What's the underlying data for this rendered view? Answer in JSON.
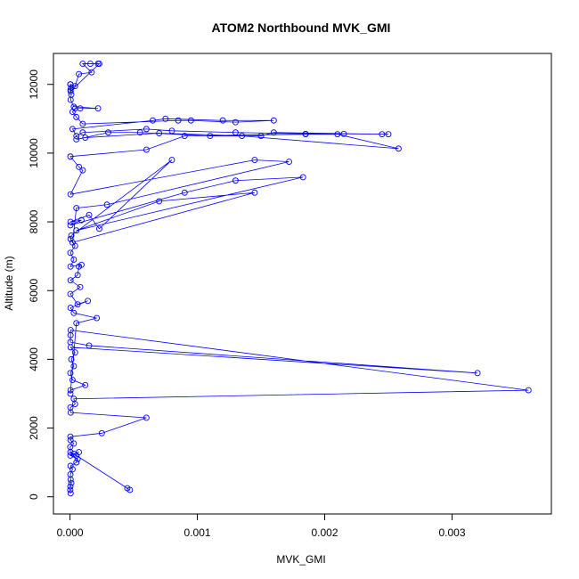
{
  "chart_data": {
    "type": "line",
    "title": "ATOM2 Northbound MVK_GMI",
    "xlabel": "MVK_GMI",
    "ylabel": "Altitude (m)",
    "xlim": [
      -0.00013,
      0.00378
    ],
    "ylim": [
      -500,
      12900
    ],
    "x_ticks": [
      0.0,
      0.001,
      0.002,
      0.003
    ],
    "x_tick_labels": [
      "0.000",
      "0.001",
      "0.002",
      "0.003"
    ],
    "y_ticks": [
      0,
      2000,
      4000,
      6000,
      8000,
      10000,
      12000
    ],
    "y_tick_labels": [
      "0",
      "2000",
      "4000",
      "6000",
      "8000",
      "10000",
      "12000"
    ],
    "grid": false,
    "legend": "none",
    "marker": "open-circle",
    "series": [
      {
        "color": "#0000ff",
        "points": [
          [
            5e-06,
            100
          ],
          [
            2e-06,
            200
          ],
          [
            3e-06,
            300
          ],
          [
            1e-05,
            400
          ],
          [
            5e-06,
            500
          ],
          [
            3e-06,
            650
          ],
          [
            2e-05,
            800
          ],
          [
            4e-06,
            900
          ],
          [
            5e-05,
            1000
          ],
          [
            6e-05,
            1100
          ],
          [
            3e-06,
            1200
          ],
          [
            7e-05,
            1300
          ],
          [
            3e-05,
            1250
          ],
          [
            0.00045,
            250
          ],
          [
            0.00047,
            200
          ],
          [
            5e-05,
            1200
          ],
          [
            3e-06,
            1300
          ],
          [
            2e-06,
            1450
          ],
          [
            3e-05,
            1550
          ],
          [
            4e-06,
            1650
          ],
          [
            3e-06,
            1750
          ],
          [
            0.00025,
            1850
          ],
          [
            0.0006,
            2300
          ],
          [
            5e-06,
            2450
          ],
          [
            3e-06,
            2600
          ],
          [
            4e-05,
            2700
          ],
          [
            3e-05,
            2850
          ],
          [
            0.0036,
            3100
          ],
          [
            5e-06,
            4850
          ],
          [
            4e-06,
            4700
          ],
          [
            3e-06,
            4500
          ],
          [
            0.00015,
            4400
          ],
          [
            0.0032,
            3600
          ],
          [
            5e-06,
            4350
          ],
          [
            4e-05,
            4200
          ],
          [
            1e-05,
            4000
          ],
          [
            3e-05,
            3800
          ],
          [
            3e-06,
            3600
          ],
          [
            2e-05,
            3400
          ],
          [
            0.00012,
            3250
          ],
          [
            4e-06,
            3100
          ],
          [
            3e-06,
            3000
          ],
          [
            5e-05,
            5050
          ],
          [
            0.00021,
            5200
          ],
          [
            3e-05,
            5350
          ],
          [
            4e-06,
            5500
          ],
          [
            0.00014,
            5700
          ],
          [
            6e-05,
            5600
          ],
          [
            3e-06,
            5900
          ],
          [
            8e-05,
            6100
          ],
          [
            4e-06,
            6300
          ],
          [
            6e-05,
            6450
          ],
          [
            7e-05,
            6700
          ],
          [
            9e-05,
            6750
          ],
          [
            4e-06,
            6700
          ],
          [
            3e-05,
            6900
          ],
          [
            3e-06,
            7100
          ],
          [
            4e-05,
            7300
          ],
          [
            4e-06,
            7500
          ],
          [
            1e-05,
            7600
          ],
          [
            0.0008,
            9800
          ],
          [
            0.00023,
            7800
          ],
          [
            0.00015,
            8200
          ],
          [
            4e-06,
            8000
          ],
          [
            9e-05,
            8050
          ],
          [
            3e-06,
            7900
          ],
          [
            0.0009,
            8850
          ],
          [
            0.0013,
            9200
          ],
          [
            0.00183,
            9300
          ],
          [
            5e-05,
            7750
          ],
          [
            0.0007,
            8600
          ],
          [
            0.00145,
            8850
          ],
          [
            2e-05,
            7400
          ],
          [
            5e-05,
            8400
          ],
          [
            0.00029,
            8500
          ],
          [
            0.00172,
            9750
          ],
          [
            0.00145,
            9800
          ],
          [
            4e-06,
            8800
          ],
          [
            0.0001,
            9500
          ],
          [
            7e-05,
            9600
          ],
          [
            3e-06,
            9900
          ],
          [
            0.0006,
            10100
          ],
          [
            0.0009,
            10500
          ],
          [
            0.00185,
            10550
          ],
          [
            0.0021,
            10550
          ],
          [
            0.00258,
            10130
          ],
          [
            0.00135,
            10500
          ],
          [
            0.0007,
            10580
          ],
          [
            0.00012,
            10450
          ],
          [
            5e-05,
            10400
          ],
          [
            0.0003,
            10600
          ],
          [
            0.00055,
            10600
          ],
          [
            0.0011,
            10500
          ],
          [
            0.0015,
            10500
          ],
          [
            0.0016,
            10600
          ],
          [
            0.00245,
            10550
          ],
          [
            0.0025,
            10550
          ],
          [
            0.00215,
            10560
          ],
          [
            0.00185,
            10560
          ],
          [
            0.0013,
            10600
          ],
          [
            0.0008,
            10650
          ],
          [
            0.0006,
            10700
          ],
          [
            0.0001,
            10600
          ],
          [
            5e-05,
            10500
          ],
          [
            2e-05,
            10700
          ],
          [
            0.00065,
            10950
          ],
          [
            0.00075,
            11000
          ],
          [
            0.0012,
            10950
          ],
          [
            0.0016,
            10950
          ],
          [
            0.0013,
            10900
          ],
          [
            0.00095,
            10950
          ],
          [
            0.00085,
            10950
          ],
          [
            0.0001,
            10850
          ],
          [
            5e-05,
            11050
          ],
          [
            2e-05,
            11200
          ],
          [
            4e-05,
            11300
          ],
          [
            8e-05,
            11300
          ],
          [
            0.00022,
            11300
          ],
          [
            3e-05,
            11350
          ],
          [
            5e-06,
            11550
          ],
          [
            1e-05,
            11700
          ],
          [
            4e-06,
            11850
          ],
          [
            3e-06,
            12000
          ],
          [
            4e-05,
            11950
          ],
          [
            7e-05,
            12300
          ],
          [
            0.00017,
            12350
          ],
          [
            0.0001,
            12600
          ],
          [
            0.00016,
            12600
          ],
          [
            0.00022,
            12600
          ],
          [
            0.00023,
            12600
          ],
          [
            5e-06,
            11800
          ],
          [
            1e-05,
            11900
          ],
          [
            3e-06,
            12000
          ]
        ]
      }
    ]
  }
}
